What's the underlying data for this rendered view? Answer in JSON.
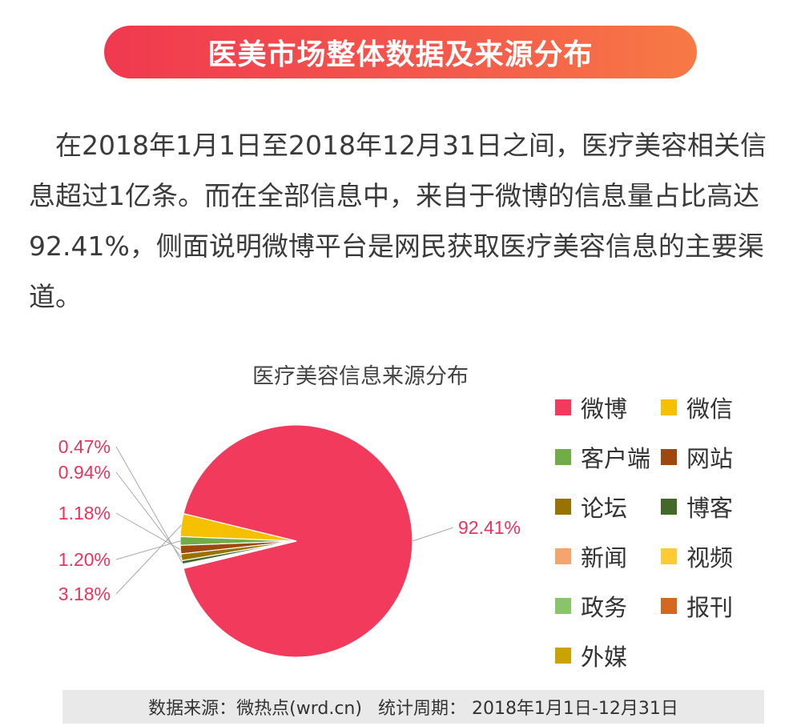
{
  "banner": {
    "title": "医美市场整体数据及来源分布"
  },
  "intro": {
    "text": "在2018年1月1日至2018年12月31日之间，医疗美容相关信息超过1亿条。而在全部信息中，来自于微博的信息量占比高达92.41%，侧面说明微博平台是网民获取医疗美容信息的主要渠道。"
  },
  "chart_data": {
    "type": "pie",
    "title": "医疗美容信息来源分布",
    "series": [
      {
        "name": "微博",
        "value": 92.41,
        "label": "92.41%",
        "color": "#f23a5c"
      },
      {
        "name": "微信",
        "value": 3.18,
        "label": "3.18%",
        "color": "#f5c000"
      },
      {
        "name": "客户端",
        "value": 1.2,
        "label": "1.20%",
        "color": "#70ad47"
      },
      {
        "name": "网站",
        "value": 1.18,
        "label": "1.18%",
        "color": "#9e480e"
      },
      {
        "name": "论坛",
        "value": 0.94,
        "label": "0.94%",
        "color": "#997300"
      },
      {
        "name": "博客",
        "value": 0.47,
        "label": "0.47%",
        "color": "#43682b"
      },
      {
        "name": "新闻",
        "value": null,
        "label": "",
        "color": "#f4a46c"
      },
      {
        "name": "视频",
        "value": null,
        "label": "",
        "color": "#ffcb32"
      },
      {
        "name": "政务",
        "value": null,
        "label": "",
        "color": "#8ac46a"
      },
      {
        "name": "报刊",
        "value": null,
        "label": "",
        "color": "#d2691e"
      },
      {
        "name": "外媒",
        "value": null,
        "label": "",
        "color": "#c9a400"
      }
    ],
    "legend": "right"
  },
  "footer": {
    "source": "数据来源：微热点(wrd.cn)",
    "period": "统计周期： 2018年1月1日-12月31日"
  }
}
